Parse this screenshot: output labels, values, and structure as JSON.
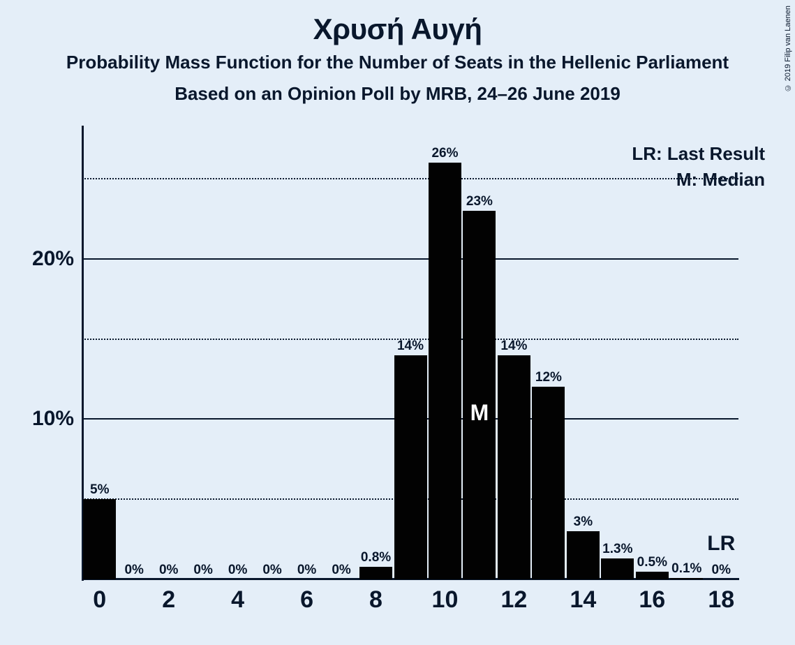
{
  "titles": {
    "main": "Χρυσή Αυγή",
    "sub1": "Probability Mass Function for the Number of Seats in the Hellenic Parliament",
    "sub2": "Based on an Opinion Poll by MRB, 24–26 June 2019"
  },
  "copyright": "© 2019 Filip van Laenen",
  "legend": {
    "lr": "LR: Last Result",
    "m": "M: Median"
  },
  "chart": {
    "type": "bar",
    "background_color": "#e4eef8",
    "bar_color": "#020202",
    "axis_color": "#09172c",
    "text_color": "#09172c",
    "label_fontsize": 19,
    "tick_fontsize": 32,
    "title_fontsize": 42,
    "bar_width_ratio": 0.95,
    "xlim": [
      0,
      18
    ],
    "ylim": [
      0,
      27
    ],
    "y_solid_ticks": [
      10,
      20
    ],
    "y_dot_ticks": [
      5,
      15,
      25
    ],
    "x_ticks": [
      0,
      2,
      4,
      6,
      8,
      10,
      12,
      14,
      16,
      18
    ],
    "median_index": 11,
    "median_label": "M",
    "lr_index": 18,
    "lr_label": "LR",
    "bars": [
      {
        "x": 0,
        "value": 5,
        "label": "5%"
      },
      {
        "x": 1,
        "value": 0,
        "label": "0%"
      },
      {
        "x": 2,
        "value": 0,
        "label": "0%"
      },
      {
        "x": 3,
        "value": 0,
        "label": "0%"
      },
      {
        "x": 4,
        "value": 0,
        "label": "0%"
      },
      {
        "x": 5,
        "value": 0,
        "label": "0%"
      },
      {
        "x": 6,
        "value": 0,
        "label": "0%"
      },
      {
        "x": 7,
        "value": 0,
        "label": "0%"
      },
      {
        "x": 8,
        "value": 0.8,
        "label": "0.8%"
      },
      {
        "x": 9,
        "value": 14,
        "label": "14%"
      },
      {
        "x": 10,
        "value": 26,
        "label": "26%"
      },
      {
        "x": 11,
        "value": 23,
        "label": "23%"
      },
      {
        "x": 12,
        "value": 14,
        "label": "14%"
      },
      {
        "x": 13,
        "value": 12,
        "label": "12%"
      },
      {
        "x": 14,
        "value": 3,
        "label": "3%"
      },
      {
        "x": 15,
        "value": 1.3,
        "label": "1.3%"
      },
      {
        "x": 16,
        "value": 0.5,
        "label": "0.5%"
      },
      {
        "x": 17,
        "value": 0.1,
        "label": "0.1%"
      },
      {
        "x": 18,
        "value": 0,
        "label": "0%"
      }
    ]
  }
}
